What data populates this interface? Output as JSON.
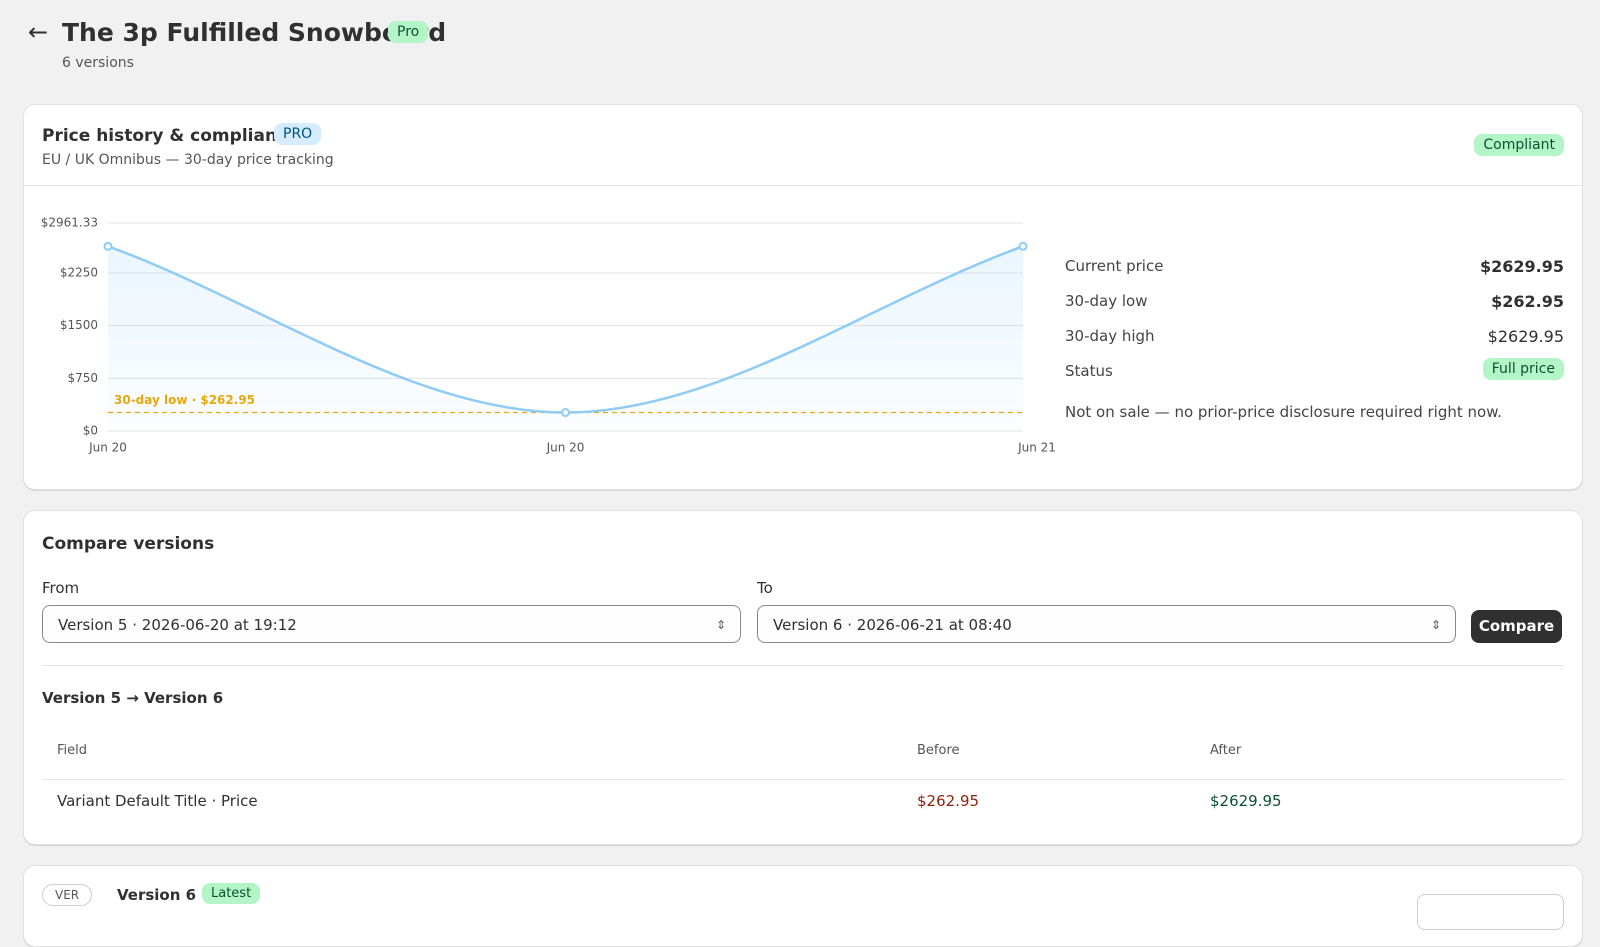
{
  "header": {
    "title": "The 3p Fulfilled Snowboard",
    "badge": "Pro",
    "subtitle": "6 versions"
  },
  "price_card": {
    "title": "Price history & compliance",
    "badge": "PRO",
    "subtitle": "EU / UK Omnibus — 30-day price tracking",
    "status": "Compliant",
    "stats": [
      [
        "Current price",
        "$2629.95"
      ],
      [
        "30-day low",
        "$262.95"
      ],
      [
        "30-day high",
        "$2629.95"
      ],
      [
        "Status",
        "Full price"
      ]
    ],
    "note": "Not on sale — no prior-price disclosure required right now."
  },
  "chart_data": {
    "type": "line",
    "categories": [
      "Jun 20",
      "Jun 20",
      "Jun 21"
    ],
    "values": [
      2629.95,
      262.95,
      2629.95
    ],
    "color": "#8ecbf5",
    "ylim": [
      0,
      2961.33
    ],
    "yticks": [
      {
        "value": 0,
        "label": "$0"
      },
      {
        "value": 750,
        "label": "$750"
      },
      {
        "value": 1500,
        "label": "$1500"
      },
      {
        "value": 2250,
        "label": "$2250"
      },
      {
        "value": 2961.33,
        "label": "$2961.33"
      }
    ],
    "grid": true,
    "reference_line": {
      "value": 262.95,
      "label": "30-day low · $262.95",
      "color": "#e8a70c"
    }
  },
  "compare": {
    "title": "Compare versions",
    "from_label": "From",
    "from_value": "Version 5 · 2026-06-20 at 19:12",
    "to_label": "To",
    "to_value": "Version 6 · 2026-06-21 at 08:40",
    "button": "Compare",
    "diff_title": "Version 5 → Version 6",
    "table": {
      "header": [
        "Field",
        "Before",
        "After"
      ],
      "rows": [
        [
          "Variant Default Title · Price",
          "$262.95",
          "$2629.95"
        ]
      ]
    }
  },
  "version_card": {
    "tag": "VER",
    "title": "Version 6",
    "badge": "Latest"
  }
}
